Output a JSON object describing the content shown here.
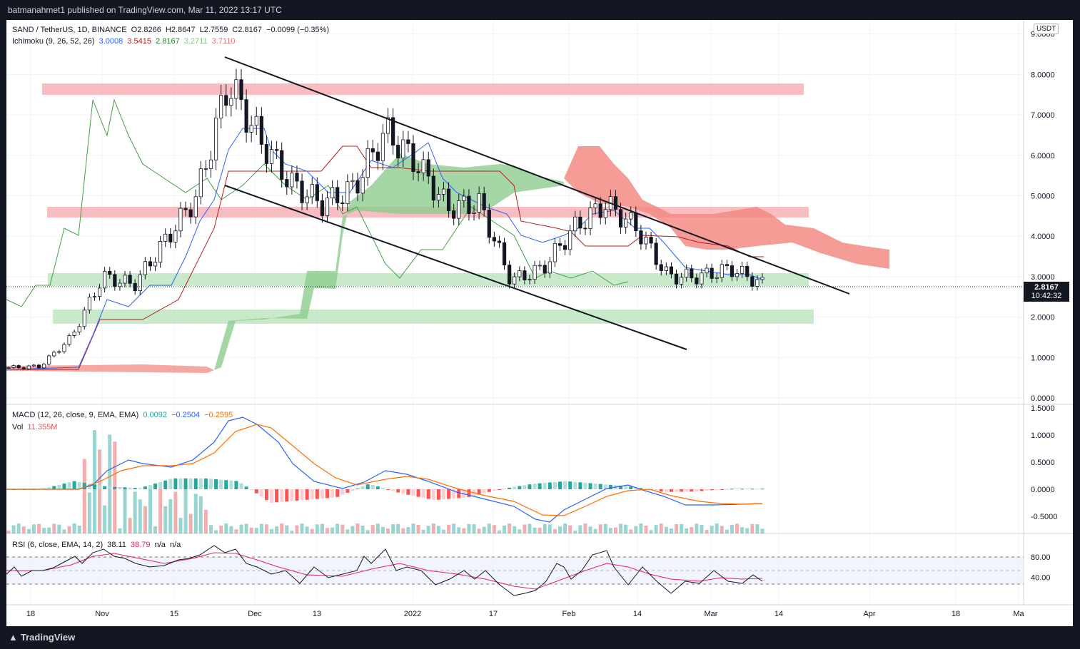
{
  "header": {
    "published": "batmanahmet1 published on TradingView.com, Mar 11, 2022 13:17 UTC"
  },
  "legend": {
    "symbol": "SAND / TetherUS, 1D, BINANCE",
    "o": "O2.8266",
    "h": "H2.8647",
    "l": "L2.7559",
    "c": "C2.8167",
    "chg": "−0.0099 (−0.35%)",
    "ichimoku_label": "Ichimoku (9, 26, 52, 26)",
    "ichimoku_values": [
      "3.0008",
      "3.5415",
      "2.8167",
      "3.2711",
      "3.7110"
    ],
    "macd_label": "MACD (12, 26, close, 9, EMA, EMA)",
    "macd_values": [
      "0.0092",
      "−0.2504",
      "−0.2595"
    ],
    "vol_label": "Vol",
    "vol_value": "11.355M",
    "rsi_label": "RSI (6, close, EMA, 14, 2)",
    "rsi_values": [
      "38.11",
      "38.79",
      "n/a",
      "n/a"
    ]
  },
  "currency_badge": "USDT",
  "last_price": "2.8167",
  "countdown": "10:42:32",
  "footer_logo": "TradingView",
  "colors": {
    "up": "#ffffff",
    "down": "#131722",
    "tenkan": "#2962ff",
    "kijun": "#b71c1c",
    "chikou": "#43a047",
    "cloud_bull": "#a5d6a7",
    "cloud_bear": "#f44336",
    "macd": "#2962ff",
    "signal": "#ff6d00",
    "hist_up": "#26a69a",
    "hist_down": "#ff5252",
    "rsi": "#131722",
    "rsi_ma": "#e91e63"
  },
  "chart_data": [
    {
      "type": "line",
      "title": "SAND / TetherUS, 1D, BINANCE",
      "ylabel": "USDT",
      "ylim": [
        0,
        9
      ],
      "yticks": [
        "9.0000",
        "8.0000",
        "7.0000",
        "6.0000",
        "5.0000",
        "4.0000",
        "3.0000",
        "2.0000",
        "1.0000",
        "0.0000"
      ],
      "xticks": [
        "18",
        "Nov",
        "15",
        "Dec",
        "13",
        "2022",
        "17",
        "Feb",
        "14",
        "Mar",
        "14",
        "Apr",
        "18",
        "Ma"
      ],
      "series": [
        {
          "name": "Close",
          "x": [
            "Oct 15",
            "Oct 25",
            "Nov 1",
            "Nov 5",
            "Nov 10",
            "Nov 16",
            "Nov 22",
            "Nov 25",
            "Dec 1",
            "Dec 7",
            "Dec 13",
            "Dec 20",
            "Dec 27",
            "Jan 1",
            "Jan 7",
            "Jan 14",
            "Jan 22",
            "Jan 27",
            "Feb 3",
            "Feb 9",
            "Feb 15",
            "Feb 22",
            "Feb 28",
            "Mar 4",
            "Mar 11"
          ],
          "values": [
            0.75,
            0.78,
            1.5,
            3.0,
            2.8,
            3.9,
            5.0,
            7.8,
            6.4,
            5.3,
            4.8,
            5.2,
            6.6,
            5.8,
            4.7,
            4.8,
            2.9,
            3.2,
            4.2,
            4.8,
            4.2,
            3.0,
            3.0,
            3.2,
            2.82
          ]
        }
      ],
      "annotations": {
        "resistance_zones": [
          [
            7.55,
            7.85
          ],
          [
            4.55,
            4.8
          ]
        ],
        "support_zones": [
          [
            2.95,
            3.25
          ],
          [
            1.9,
            2.25
          ]
        ],
        "channel_upper": [
          [
            8.5,
            "Nov 24"
          ],
          [
            2.7,
            "Mar 26"
          ]
        ],
        "channel_lower": [
          [
            5.3,
            "Nov 24"
          ],
          [
            1.25,
            "Feb 24"
          ]
        ]
      }
    },
    {
      "type": "line",
      "title": "MACD (12, 26, close, 9, EMA, EMA)",
      "ylim": [
        -0.75,
        1.5
      ],
      "yticks": [
        "1.5000",
        "1.0000",
        "0.5000",
        "0.0000",
        "-0.5000"
      ],
      "series": [
        {
          "name": "MACD",
          "values": [
            0.0,
            0.0,
            0.3,
            0.5,
            0.5,
            0.9,
            1.3,
            1.3,
            0.6,
            0.2,
            0.0,
            0.3,
            0.1,
            -0.2,
            -0.4,
            -0.4,
            -0.2,
            0.1,
            0.2,
            0.1,
            -0.2,
            -0.28,
            -0.25,
            -0.25
          ]
        },
        {
          "name": "Signal",
          "values": [
            0.0,
            0.0,
            0.15,
            0.45,
            0.48,
            0.7,
            1.1,
            1.15,
            0.85,
            0.4,
            0.15,
            0.2,
            0.18,
            0.0,
            -0.25,
            -0.4,
            -0.3,
            -0.05,
            0.1,
            0.05,
            -0.15,
            -0.24,
            -0.26,
            -0.26
          ]
        }
      ]
    },
    {
      "type": "line",
      "title": "RSI (6, close, EMA, 14, 2)",
      "yticks": [
        "80.00",
        "40.00"
      ],
      "series": [
        {
          "name": "RSI",
          "values": [
            55,
            60,
            75,
            60,
            85,
            70,
            55,
            45,
            60,
            75,
            55,
            35,
            30,
            50,
            75,
            40,
            30,
            50,
            55,
            45,
            40,
            40
          ]
        },
        {
          "name": "RSI MA",
          "values": [
            50,
            55,
            65,
            65,
            75,
            70,
            60,
            50,
            52,
            60,
            58,
            45,
            38,
            42,
            55,
            48,
            40,
            42,
            47,
            45,
            42,
            39
          ]
        }
      ]
    }
  ]
}
